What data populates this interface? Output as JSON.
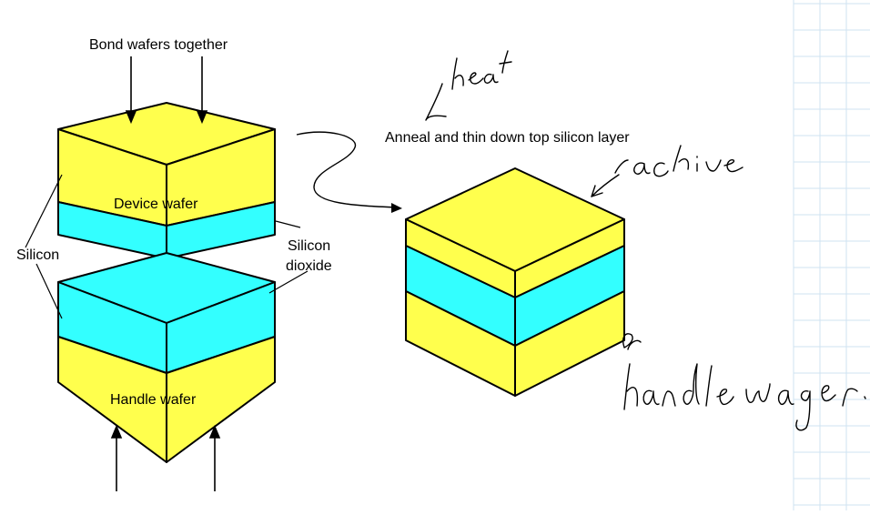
{
  "colors": {
    "silicon": "#ffff4d",
    "oxide": "#33ffff",
    "outline": "#000000",
    "ink": "#000000",
    "grid": "#cfe3f2"
  },
  "labels": {
    "bond_title": "Bond wafers together",
    "anneal_title": "Anneal and thin down top silicon layer",
    "device_wafer": "Device wafer",
    "handle_wafer": "Handle wafer",
    "silicon": "Silicon",
    "silicon_dioxide_line1": "Silicon",
    "silicon_dioxide_line2": "dioxide"
  },
  "handwriting": {
    "heat": "heat",
    "active": "active",
    "handle_wafer": "handle wafer."
  }
}
